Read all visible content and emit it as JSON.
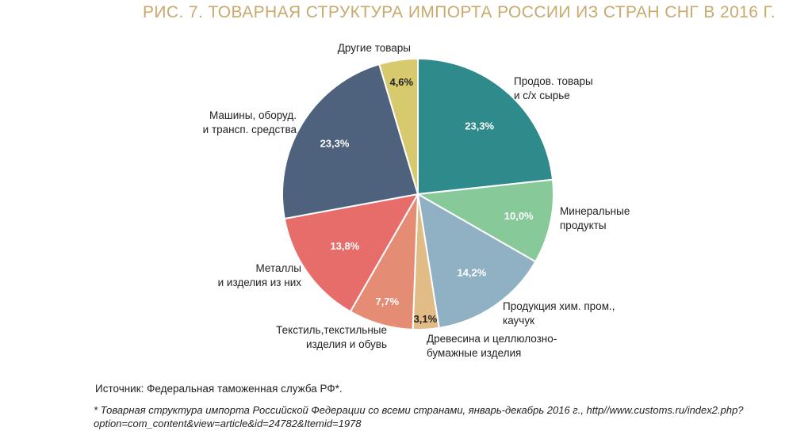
{
  "title": "РИС. 7. ТОВАРНАЯ СТРУКТУРА ИМПОРТА РОССИИ ИЗ СТРАН СНГ В 2016 Г.",
  "source": "Источник: Федеральная таможенная служба РФ*.",
  "footnote": "* Товарная структура импорта Российской Федерации со всеми странами, январь-декабрь 2016 г., http//www.customs.ru/index2.php?option=com_content&view=article&id=24782&Itemid=1978",
  "chart_data": {
    "type": "pie",
    "title": "РИС. 7. ТОВАРНАЯ СТРУКТУРА ИМПОРТА РОССИИ ИЗ СТРАН СНГ В 2016 Г.",
    "unit": "%",
    "start": "12 o'clock, clockwise",
    "slices": [
      {
        "label": "Продов. товары и с/х сырье",
        "value": 23.3,
        "display": "23,3%",
        "color": "#2f8a8c"
      },
      {
        "label": "Минеральные продукты",
        "value": 10.0,
        "display": "10,0%",
        "color": "#88c99a"
      },
      {
        "label": "Продукция хим. пром., каучук",
        "value": 14.2,
        "display": "14,2%",
        "color": "#8fb1c3"
      },
      {
        "label": "Древесина и целлюлозно-бумажные изделия",
        "value": 3.1,
        "display": "3,1%",
        "color": "#e2bc86"
      },
      {
        "label": "Текстиль,текстильные изделия и обувь",
        "value": 7.7,
        "display": "7,7%",
        "color": "#e48d74"
      },
      {
        "label": "Металлы и изделия из них",
        "value": 13.8,
        "display": "13,8%",
        "color": "#e66d69"
      },
      {
        "label": "Машины, оборуд. и трансп. средства",
        "value": 23.3,
        "display": "23,3%",
        "color": "#4f627d"
      },
      {
        "label": "Другие товары",
        "value": 4.6,
        "display": "4,6%",
        "color": "#d6c96e"
      }
    ],
    "label_lines": [
      [
        "Продов. товары",
        "и с/х сырье"
      ],
      [
        "Минеральные",
        "продукты"
      ],
      [
        "Продукция хим. пром.,",
        "каучук"
      ],
      [
        "Древесина и целлюлозно-",
        "бумажные изделия"
      ],
      [
        "Текстиль,текстильные",
        "изделия и обувь"
      ],
      [
        "Металлы",
        "и изделия из них"
      ],
      [
        "Машины, оборуд.",
        "и трансп. средства"
      ],
      [
        "Другие товары"
      ]
    ]
  }
}
